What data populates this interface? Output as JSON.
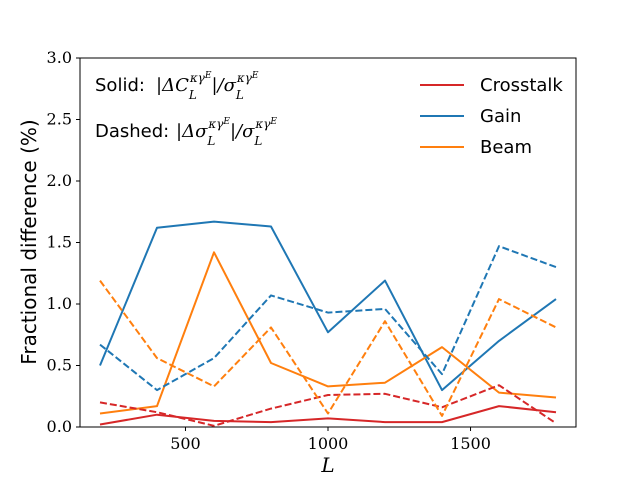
{
  "chart_data": {
    "type": "line",
    "title": "",
    "xlabel": "L",
    "ylabel": "Fractional difference (%)",
    "xlim": [
      130,
      1870
    ],
    "ylim": [
      0.0,
      3.0
    ],
    "xticks": [
      500,
      1000,
      1500
    ],
    "xtick_labels": [
      "500",
      "1000",
      "1500"
    ],
    "yticks": [
      0.0,
      0.5,
      1.0,
      1.5,
      2.0,
      2.5,
      3.0
    ],
    "ytick_labels": [
      "0.0",
      "0.5",
      "1.0",
      "1.5",
      "2.0",
      "2.5",
      "3.0"
    ],
    "x": [
      200,
      400,
      600,
      800,
      1000,
      1200,
      1400,
      1600,
      1800
    ],
    "series": [
      {
        "name": "Crosstalk",
        "style": "solid",
        "color": "#d62728",
        "legend": true,
        "values": [
          0.02,
          0.1,
          0.05,
          0.04,
          0.07,
          0.04,
          0.04,
          0.17,
          0.12
        ]
      },
      {
        "name": "Gain",
        "style": "solid",
        "color": "#1f77b4",
        "legend": true,
        "values": [
          0.5,
          1.62,
          1.67,
          1.63,
          0.77,
          1.19,
          0.3,
          0.7,
          1.04
        ]
      },
      {
        "name": "Beam",
        "style": "solid",
        "color": "#ff7f0e",
        "legend": true,
        "values": [
          0.11,
          0.17,
          1.42,
          0.52,
          0.33,
          0.36,
          0.65,
          0.28,
          0.24
        ]
      },
      {
        "name": "Crosstalk (dashed)",
        "style": "dashed",
        "color": "#d62728",
        "legend": false,
        "values": [
          0.2,
          0.12,
          0.01,
          0.15,
          0.26,
          0.27,
          0.16,
          0.34,
          0.03
        ]
      },
      {
        "name": "Gain (dashed)",
        "style": "dashed",
        "color": "#1f77b4",
        "legend": false,
        "values": [
          0.67,
          0.3,
          0.56,
          1.07,
          0.93,
          0.96,
          0.43,
          1.47,
          1.3
        ]
      },
      {
        "name": "Beam (dashed)",
        "style": "dashed",
        "color": "#ff7f0e",
        "legend": false,
        "values": [
          1.19,
          0.56,
          0.33,
          0.81,
          0.11,
          0.86,
          0.09,
          1.04,
          0.81
        ]
      }
    ],
    "annotations": {
      "solid_label": "Solid:",
      "solid_formula": "|ΔC_L^{κγ^E}|/σ_L^{κγ^E}",
      "dashed_label": "Dashed:",
      "dashed_formula": "|Δσ_L^{κγ^E}|/σ_L^{κγ^E}"
    },
    "legend_position": "top-right"
  }
}
